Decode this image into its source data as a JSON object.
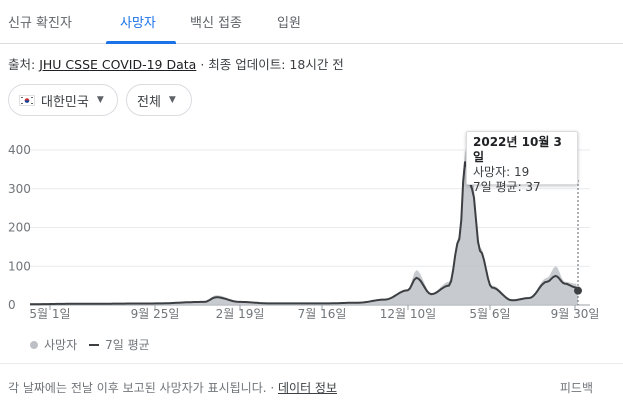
{
  "tabs": [
    {
      "label": "신규 확진자"
    },
    {
      "label": "사망자"
    },
    {
      "label": "백신 접종"
    },
    {
      "label": "입원"
    }
  ],
  "source": {
    "prefix": "출처:",
    "link": "JHU CSSE COVID-19 Data",
    "suffix": "· 최종 업데이트: 18시간 전"
  },
  "filters": {
    "region": "대한민국",
    "range": "전체"
  },
  "tooltip": {
    "date": "2022년 10월 3일",
    "deaths": "사망자: 19",
    "avg": "7일 평균: 37"
  },
  "legend": {
    "deaths": "사망자",
    "avg": "7일 평균"
  },
  "footer": {
    "note": "각 날짜에는 전날 이후 보고된 사망자가 표시됩니다. ·",
    "link": "데이터 정보",
    "feedback": "피드백"
  },
  "colors": {
    "accent": "#1a73e8",
    "bars": "#bdc1c6",
    "line": "#3c4043"
  },
  "chart_data": {
    "type": "area",
    "ylim": [
      0,
      400
    ],
    "yticks": [
      0,
      100,
      200,
      300,
      400
    ],
    "xticks": [
      "5월 1일",
      "9월 25일",
      "2월 19일",
      "7월 16일",
      "12월 10일",
      "5월 6일",
      "9월 30일"
    ],
    "series": [
      {
        "name": "사망자",
        "x": [
          "2020-02-20",
          "2020-05-01",
          "2020-09-25",
          "2020-12-20",
          "2021-01-10",
          "2021-02-19",
          "2021-04-15",
          "2021-07-16",
          "2021-09-15",
          "2021-10-31",
          "2021-12-10",
          "2021-12-25",
          "2022-01-20",
          "2022-02-20",
          "2022-03-10",
          "2022-03-20",
          "2022-04-01",
          "2022-04-15",
          "2022-05-06",
          "2022-06-10",
          "2022-07-10",
          "2022-08-10",
          "2022-08-25",
          "2022-09-10",
          "2022-09-30",
          "2022-10-03"
        ],
        "values": [
          5,
          3,
          5,
          10,
          25,
          10,
          5,
          4,
          8,
          15,
          40,
          90,
          30,
          60,
          180,
          400,
          330,
          150,
          50,
          15,
          20,
          70,
          100,
          60,
          55,
          19
        ]
      },
      {
        "name": "7일 평균",
        "x": [
          "2020-02-20",
          "2020-05-01",
          "2020-09-25",
          "2020-12-20",
          "2021-01-10",
          "2021-02-19",
          "2021-04-15",
          "2021-07-16",
          "2021-09-15",
          "2021-10-31",
          "2021-12-10",
          "2021-12-25",
          "2022-01-20",
          "2022-02-20",
          "2022-03-10",
          "2022-03-20",
          "2022-04-01",
          "2022-04-15",
          "2022-05-06",
          "2022-06-10",
          "2022-07-10",
          "2022-08-10",
          "2022-08-25",
          "2022-09-10",
          "2022-09-30",
          "2022-10-03"
        ],
        "values": [
          2,
          3,
          4,
          8,
          20,
          8,
          4,
          4,
          6,
          14,
          38,
          70,
          28,
          50,
          170,
          370,
          300,
          140,
          45,
          12,
          18,
          60,
          75,
          55,
          45,
          37
        ]
      }
    ]
  }
}
